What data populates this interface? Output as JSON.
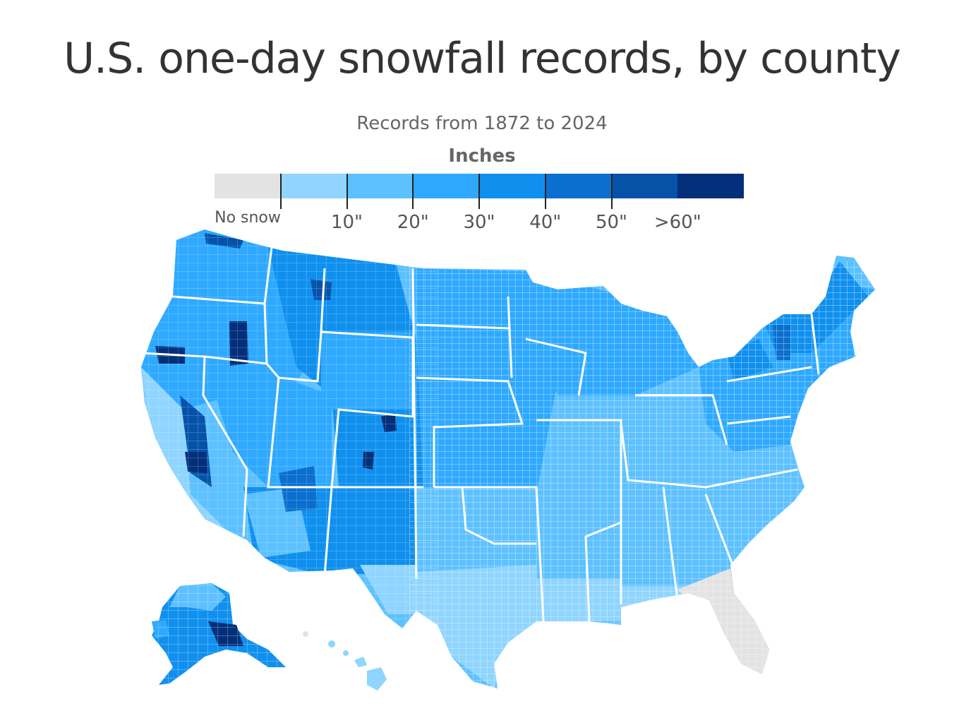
{
  "title": "U.S. one-day snowfall records, by county",
  "subtitle": "Records from 1872 to 2024",
  "legend": {
    "title": "Inches",
    "no_snow_label": "No snow",
    "bins": [
      {
        "color": "#e3e3e3"
      },
      {
        "color": "#8fd5ff"
      },
      {
        "color": "#5ec1ff"
      },
      {
        "color": "#2ea9ff"
      },
      {
        "color": "#1090ee"
      },
      {
        "color": "#0a6fce"
      },
      {
        "color": "#0552a9"
      },
      {
        "color": "#032f7a"
      }
    ],
    "tick_labels": [
      "10\"",
      "20\"",
      "30\"",
      "40\"",
      "50\"",
      ">60\""
    ]
  },
  "colors": {
    "no_snow": "#e3e3e3",
    "lightest": "#8fd5ff",
    "light": "#5ec1ff",
    "medium": "#2ea9ff",
    "medium_dark": "#1090ee",
    "dark": "#0a6fce",
    "darker": "#0552a9",
    "darkest": "#032f7a",
    "borders": "#ffffff"
  },
  "map": {
    "regions": [
      {
        "name": "Contiguous U.S.",
        "color": "#2ea9ff"
      },
      {
        "name": "Alaska",
        "color": "#1090ee"
      },
      {
        "name": "Hawaii",
        "color": "#8fd5ff"
      }
    ]
  }
}
